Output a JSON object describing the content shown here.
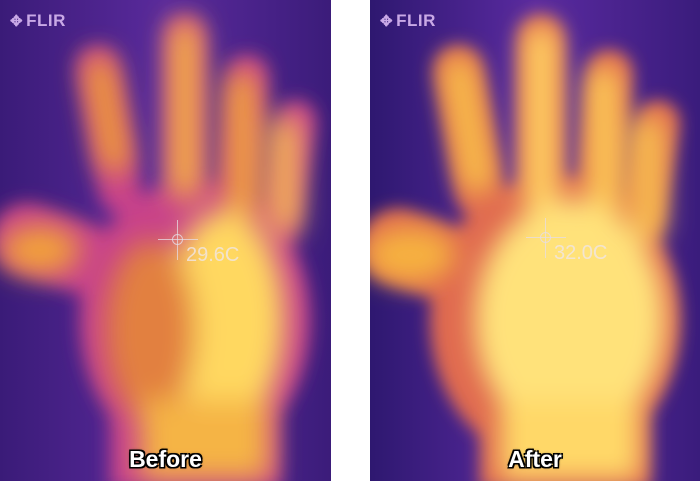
{
  "panels": [
    {
      "brand": "FLIR",
      "temperature": "29.6C",
      "caption": "Before"
    },
    {
      "brand": "FLIR",
      "temperature": "32.0C",
      "caption": "After"
    }
  ],
  "colors": {
    "background": "#4b2590",
    "warm": "#f0a020",
    "hot": "#ffe27a",
    "cool": "#2a1660"
  }
}
